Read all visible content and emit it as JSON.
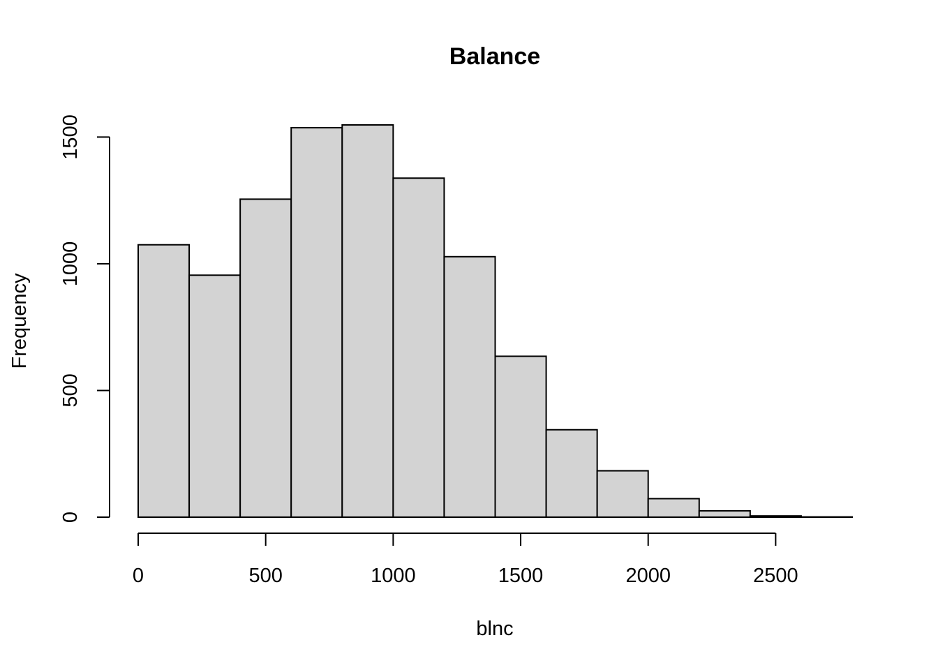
{
  "chart_data": {
    "type": "bar",
    "title": "Balance",
    "xlabel": "blnc",
    "ylabel": "Frequency",
    "bin_edges": [
      0,
      200,
      400,
      600,
      800,
      1000,
      1200,
      1400,
      1600,
      1800,
      2000,
      2200,
      2400,
      2600,
      2800
    ],
    "values": [
      1075,
      955,
      1255,
      1537,
      1548,
      1338,
      1028,
      635,
      345,
      183,
      73,
      25,
      5,
      1
    ],
    "xlim": [
      0,
      2800
    ],
    "ylim": [
      0,
      1548
    ],
    "x_ticks": [
      0,
      500,
      1000,
      1500,
      2000,
      2500
    ],
    "y_ticks": [
      0,
      500,
      1000,
      1500
    ],
    "grid": false
  }
}
